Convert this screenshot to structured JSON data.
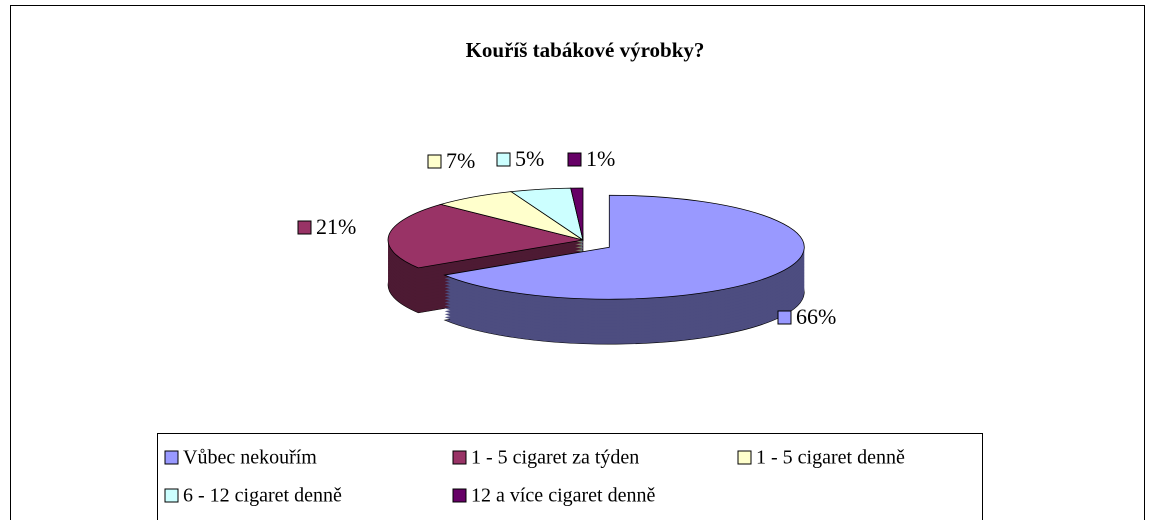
{
  "chart_data": {
    "type": "pie3d",
    "title": "Kouříš tabákové výrobky?",
    "categories": [
      "Vůbec nekouřím",
      "1 - 5 cigaret za týden",
      "1 - 5 cigaret denně",
      "6 - 12 cigaret denně",
      "12 a více cigaret denně"
    ],
    "values": [
      66,
      21,
      7,
      5,
      1
    ],
    "value_labels": [
      "66%",
      "21%",
      "7%",
      "5%",
      "1%"
    ],
    "colors": [
      "#9999ff",
      "#993366",
      "#ffffcc",
      "#ccffff",
      "#660066"
    ],
    "legend": "bottom"
  }
}
